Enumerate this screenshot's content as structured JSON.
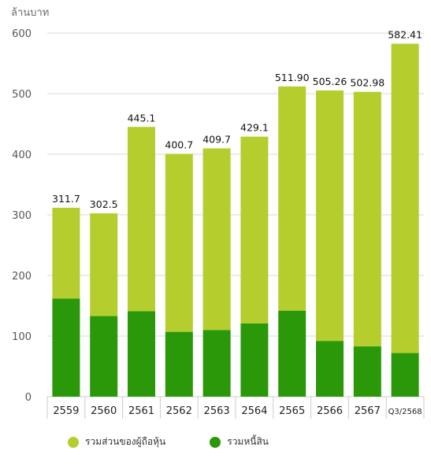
{
  "colors": {
    "equity": "#b5cd2d",
    "liabilities": "#2a9808",
    "grid": "#d9d9d9",
    "axis": "#cccccc"
  },
  "chart_data": {
    "type": "bar",
    "stacked": true,
    "unit_label": "ล้านบาท",
    "categories": [
      "2559",
      "2560",
      "2561",
      "2562",
      "2563",
      "2564",
      "2565",
      "2566",
      "2567",
      "Q3/2568"
    ],
    "series": [
      {
        "name": "รวมหนี้สิน",
        "values": [
          162,
          133,
          141,
          107,
          110,
          121,
          142,
          92,
          83,
          72
        ]
      },
      {
        "name": "รวมส่วนของผู้ถือหุ้น",
        "values": [
          149.7,
          169.5,
          304.1,
          293.7,
          299.7,
          308.1,
          369.9,
          413.26,
          419.98,
          510.41
        ]
      }
    ],
    "totals": [
      311.7,
      302.5,
      445.1,
      400.7,
      409.7,
      429.1,
      511.9,
      505.26,
      502.98,
      582.41
    ],
    "total_labels": [
      "311.7",
      "302.5",
      "445.1",
      "400.7",
      "409.7",
      "429.1",
      "511.90",
      "505.26",
      "502.98",
      "582.41"
    ],
    "yticks": [
      0,
      100,
      200,
      300,
      400,
      500,
      600
    ],
    "ylim": [
      0,
      600
    ],
    "grid": true,
    "legend_position": "bottom"
  },
  "legend": [
    {
      "label": "รวมส่วนของผู้ถือหุ้น",
      "color": "#b5cd2d"
    },
    {
      "label": "รวมหนี้สิน",
      "color": "#2a9808"
    }
  ]
}
